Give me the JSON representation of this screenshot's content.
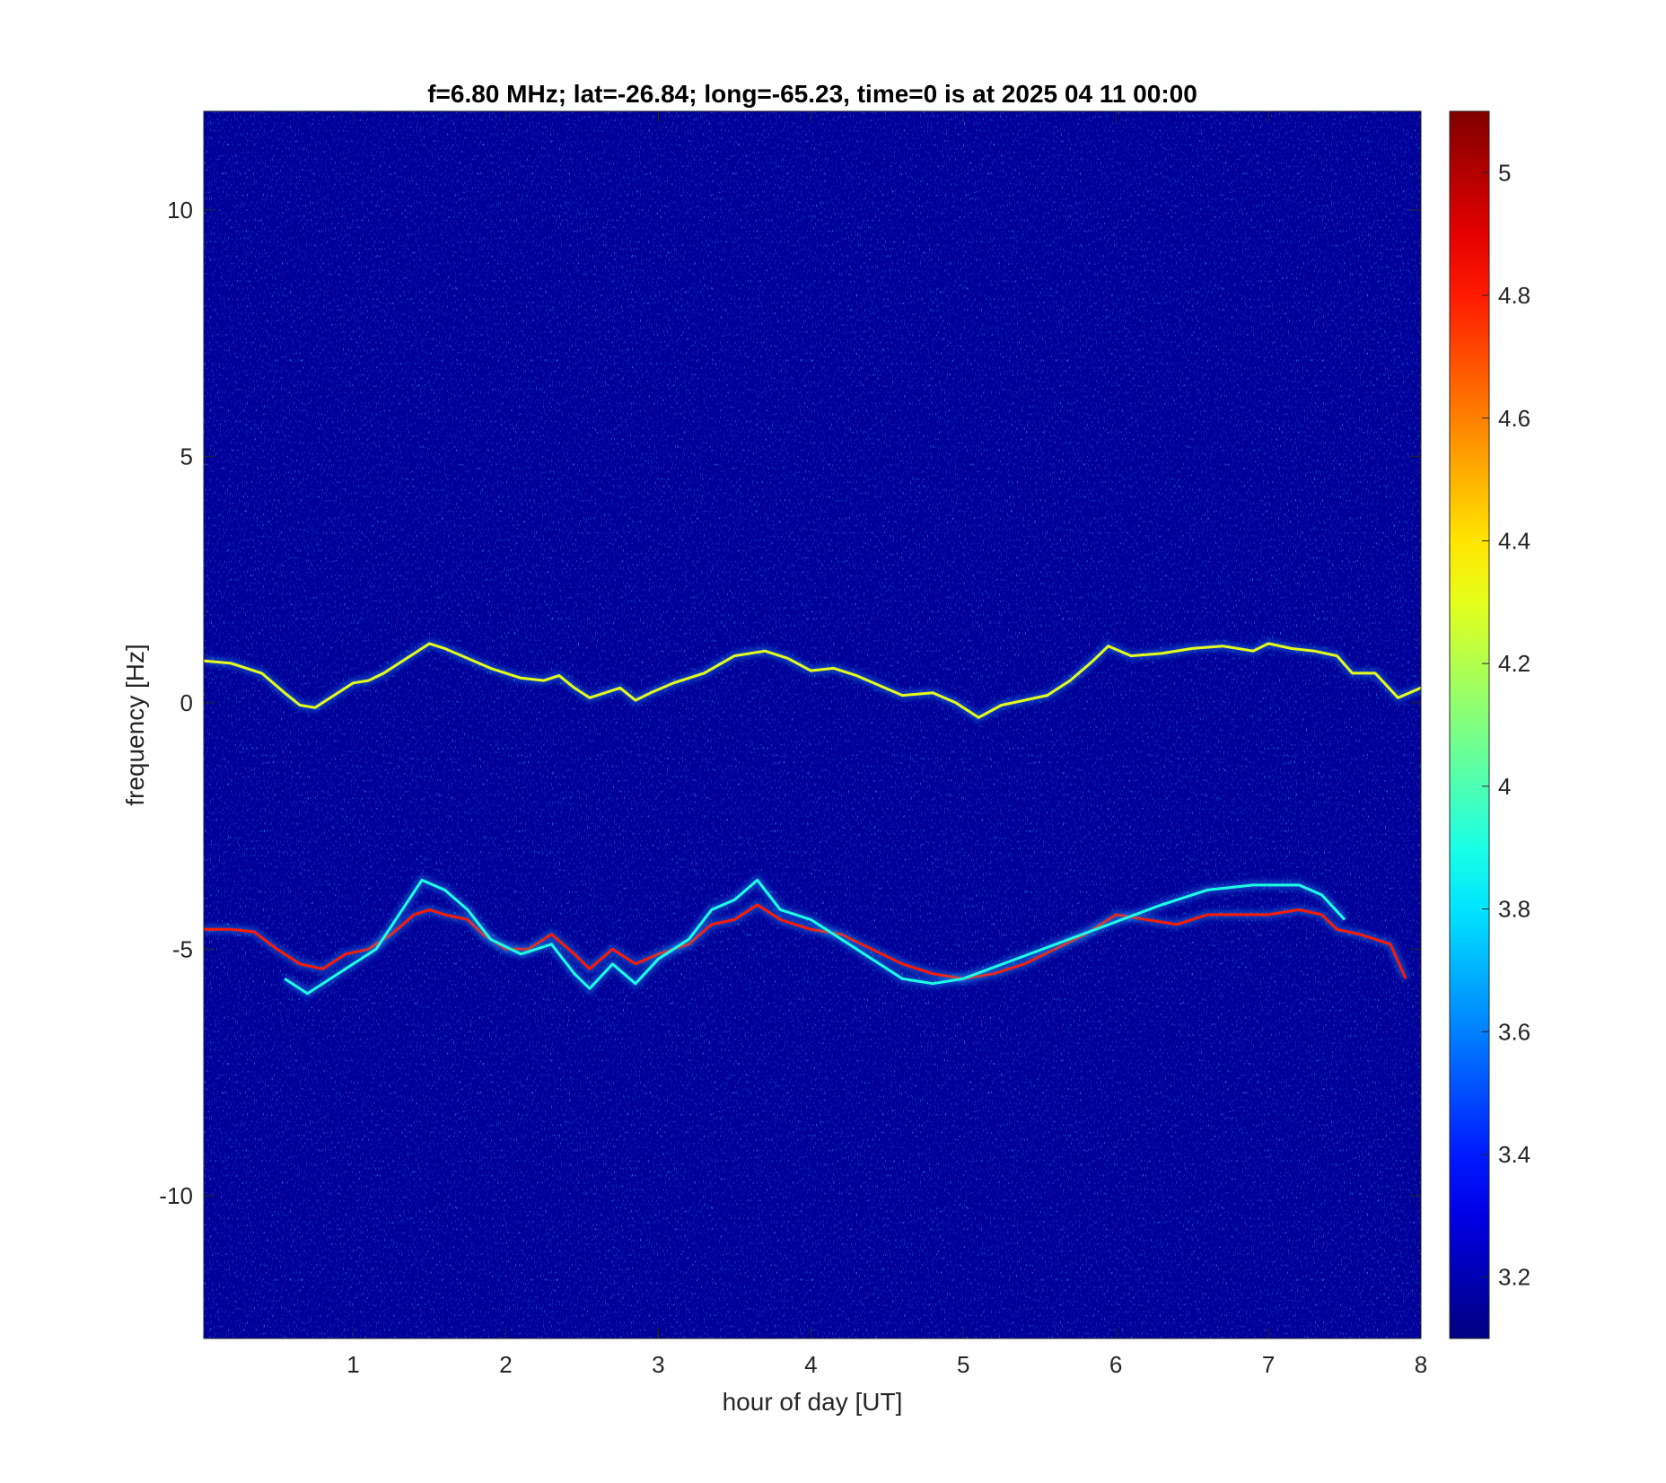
{
  "chart_data": {
    "type": "heatmap",
    "title": "f=6.80 MHz;  lat=-26.84; long=-65.23, time=0 is at 2025 04 11 00:00",
    "xlabel": "hour of day [UT]",
    "ylabel": "frequency [Hz]",
    "xlim": [
      0.02,
      8.0
    ],
    "ylim": [
      -12.9,
      12.0
    ],
    "x_ticks": [
      1,
      2,
      3,
      4,
      5,
      6,
      7,
      8
    ],
    "y_ticks": [
      -10,
      -5,
      0,
      5,
      10
    ],
    "colorbar": {
      "colormap": "jet",
      "clim": [
        3.1,
        5.1
      ],
      "ticks": [
        3.2,
        3.4,
        3.6,
        3.8,
        4,
        4.2,
        4.4,
        4.6,
        4.8,
        5
      ]
    },
    "background_level": 3.15,
    "traces": [
      {
        "level": 4.3,
        "points": [
          [
            0.02,
            0.85
          ],
          [
            0.2,
            0.8
          ],
          [
            0.4,
            0.6
          ],
          [
            0.55,
            0.2
          ],
          [
            0.65,
            -0.05
          ],
          [
            0.75,
            -0.1
          ],
          [
            0.9,
            0.2
          ],
          [
            1.0,
            0.4
          ],
          [
            1.1,
            0.45
          ],
          [
            1.2,
            0.6
          ],
          [
            1.35,
            0.9
          ],
          [
            1.5,
            1.2
          ],
          [
            1.6,
            1.1
          ],
          [
            1.75,
            0.9
          ],
          [
            1.9,
            0.7
          ],
          [
            2.1,
            0.5
          ],
          [
            2.25,
            0.45
          ],
          [
            2.35,
            0.55
          ],
          [
            2.45,
            0.3
          ],
          [
            2.55,
            0.1
          ],
          [
            2.65,
            0.2
          ],
          [
            2.75,
            0.3
          ],
          [
            2.85,
            0.05
          ],
          [
            2.95,
            0.2
          ],
          [
            3.1,
            0.4
          ],
          [
            3.3,
            0.6
          ],
          [
            3.5,
            0.95
          ],
          [
            3.7,
            1.05
          ],
          [
            3.85,
            0.9
          ],
          [
            4.0,
            0.65
          ],
          [
            4.15,
            0.7
          ],
          [
            4.3,
            0.55
          ],
          [
            4.45,
            0.35
          ],
          [
            4.6,
            0.15
          ],
          [
            4.8,
            0.2
          ],
          [
            4.95,
            0.0
          ],
          [
            5.1,
            -0.3
          ],
          [
            5.25,
            -0.05
          ],
          [
            5.4,
            0.05
          ],
          [
            5.55,
            0.15
          ],
          [
            5.7,
            0.45
          ],
          [
            5.85,
            0.85
          ],
          [
            5.95,
            1.15
          ],
          [
            6.1,
            0.95
          ],
          [
            6.3,
            1.0
          ],
          [
            6.5,
            1.1
          ],
          [
            6.7,
            1.15
          ],
          [
            6.9,
            1.05
          ],
          [
            7.0,
            1.2
          ],
          [
            7.15,
            1.1
          ],
          [
            7.3,
            1.05
          ],
          [
            7.45,
            0.95
          ],
          [
            7.55,
            0.6
          ],
          [
            7.7,
            0.6
          ],
          [
            7.85,
            0.1
          ],
          [
            8.0,
            0.3
          ]
        ]
      },
      {
        "level": 4.8,
        "points": [
          [
            0.02,
            -4.6
          ],
          [
            0.2,
            -4.6
          ],
          [
            0.35,
            -4.65
          ],
          [
            0.5,
            -5.0
          ],
          [
            0.65,
            -5.3
          ],
          [
            0.8,
            -5.4
          ],
          [
            0.95,
            -5.1
          ],
          [
            1.1,
            -5.0
          ],
          [
            1.25,
            -4.7
          ],
          [
            1.4,
            -4.3
          ],
          [
            1.5,
            -4.2
          ],
          [
            1.6,
            -4.3
          ],
          [
            1.75,
            -4.4
          ],
          [
            1.85,
            -4.7
          ],
          [
            2.0,
            -5.0
          ],
          [
            2.15,
            -5.0
          ],
          [
            2.3,
            -4.7
          ],
          [
            2.45,
            -5.1
          ],
          [
            2.55,
            -5.4
          ],
          [
            2.7,
            -5.0
          ],
          [
            2.85,
            -5.3
          ],
          [
            3.0,
            -5.1
          ],
          [
            3.2,
            -4.9
          ],
          [
            3.35,
            -4.5
          ],
          [
            3.5,
            -4.4
          ],
          [
            3.65,
            -4.1
          ],
          [
            3.8,
            -4.4
          ],
          [
            4.0,
            -4.6
          ],
          [
            4.2,
            -4.7
          ],
          [
            4.4,
            -5.0
          ],
          [
            4.6,
            -5.3
          ],
          [
            4.8,
            -5.5
          ],
          [
            5.0,
            -5.6
          ],
          [
            5.2,
            -5.5
          ],
          [
            5.4,
            -5.3
          ],
          [
            5.6,
            -5.0
          ],
          [
            5.8,
            -4.7
          ],
          [
            6.0,
            -4.3
          ],
          [
            6.2,
            -4.4
          ],
          [
            6.4,
            -4.5
          ],
          [
            6.6,
            -4.3
          ],
          [
            6.8,
            -4.3
          ],
          [
            7.0,
            -4.3
          ],
          [
            7.2,
            -4.2
          ],
          [
            7.35,
            -4.3
          ],
          [
            7.45,
            -4.6
          ],
          [
            7.6,
            -4.7
          ],
          [
            7.8,
            -4.9
          ],
          [
            7.9,
            -5.6
          ]
        ]
      },
      {
        "level": 3.9,
        "points": [
          [
            0.55,
            -5.6
          ],
          [
            0.7,
            -5.9
          ],
          [
            0.85,
            -5.6
          ],
          [
            1.0,
            -5.3
          ],
          [
            1.15,
            -5.0
          ],
          [
            1.3,
            -4.3
          ],
          [
            1.45,
            -3.6
          ],
          [
            1.6,
            -3.8
          ],
          [
            1.75,
            -4.2
          ],
          [
            1.9,
            -4.8
          ],
          [
            2.1,
            -5.1
          ],
          [
            2.3,
            -4.9
          ],
          [
            2.45,
            -5.5
          ],
          [
            2.55,
            -5.8
          ],
          [
            2.7,
            -5.3
          ],
          [
            2.85,
            -5.7
          ],
          [
            3.0,
            -5.2
          ],
          [
            3.2,
            -4.8
          ],
          [
            3.35,
            -4.2
          ],
          [
            3.5,
            -4.0
          ],
          [
            3.65,
            -3.6
          ],
          [
            3.8,
            -4.2
          ],
          [
            4.0,
            -4.4
          ],
          [
            4.2,
            -4.8
          ],
          [
            4.4,
            -5.2
          ],
          [
            4.6,
            -5.6
          ],
          [
            4.8,
            -5.7
          ],
          [
            5.0,
            -5.6
          ],
          [
            6.3,
            -4.1
          ],
          [
            6.6,
            -3.8
          ],
          [
            6.9,
            -3.7
          ],
          [
            7.2,
            -3.7
          ],
          [
            7.35,
            -3.9
          ],
          [
            7.5,
            -4.4
          ]
        ]
      }
    ]
  }
}
